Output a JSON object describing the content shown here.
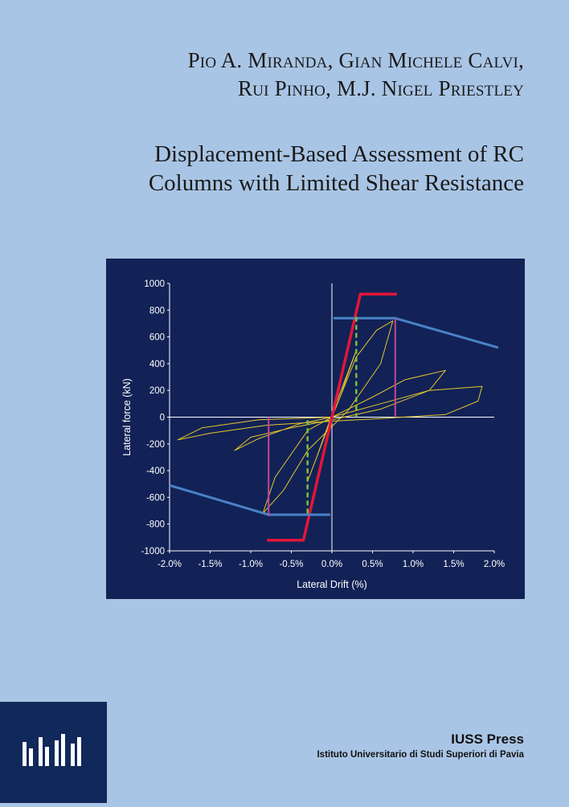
{
  "authors": {
    "line1": "Pio A. Miranda, Gian Michele Calvi,",
    "line2": "Rui Pinho, M.J. Nigel Priestley"
  },
  "title": {
    "line1": "Displacement-Based Assessment of RC",
    "line2": "Columns with Limited Shear Resistance"
  },
  "publisher": {
    "name": "IUSS Press",
    "full_name": "Istituto Universitario di Studi Superiori di Pavia"
  },
  "logo": {
    "icon": "iuss-logo-icon"
  },
  "colors": {
    "background": "#a9c5e5",
    "figure_background": "#122256",
    "hysteresis": "#e6c72e",
    "bilinear_red": "#e3163a",
    "envelope_blue": "#4a82c8",
    "drop_magenta": "#c2479a",
    "dashed_green": "#7cc23a"
  },
  "chart_data": {
    "type": "line",
    "title": "",
    "xlabel": "Lateral Drift (%)",
    "ylabel": "Lateral force (kN)",
    "xlim": [
      -2.0,
      2.0
    ],
    "ylim": [
      -1000,
      1000
    ],
    "x_ticks": [
      -2.0,
      -1.5,
      -1.0,
      -0.5,
      0.0,
      0.5,
      1.0,
      1.5,
      2.0
    ],
    "x_tick_labels": [
      "-2.0%",
      "-1.5%",
      "-1.0%",
      "-0.5%",
      "0.0%",
      "0.5%",
      "1.0%",
      "1.5%",
      "2.0%"
    ],
    "y_ticks": [
      -1000,
      -800,
      -600,
      -400,
      -200,
      0,
      200,
      400,
      600,
      800,
      1000
    ],
    "y_tick_labels": [
      "-1000",
      "-800",
      "-600",
      "-400",
      "-200",
      "0",
      "200",
      "400",
      "600",
      "800",
      "1000"
    ],
    "grid": false,
    "legend": "none",
    "series": [
      {
        "style": "red-bilinear",
        "x": [
          -0.8,
          -0.35,
          0.35,
          0.8
        ],
        "y": [
          -920,
          -920,
          920,
          920
        ]
      },
      {
        "style": "blue-envelope",
        "x": [
          -2.0,
          -0.78,
          -0.02
        ],
        "y": [
          -510,
          -730,
          -730
        ],
        "x2": [
          0.02,
          0.78,
          2.05
        ],
        "y2": [
          740,
          740,
          520
        ]
      },
      {
        "style": "magenta-drop",
        "x": [
          -0.78,
          -0.78
        ],
        "y": [
          -740,
          0
        ],
        "x2": [
          0.78,
          0.78
        ],
        "y2": [
          740,
          0
        ]
      },
      {
        "style": "green-dashed",
        "x": [
          -0.3,
          -0.3
        ],
        "y": [
          -720,
          0
        ],
        "x2": [
          0.3,
          0.3
        ],
        "y2": [
          750,
          0
        ]
      },
      {
        "style": "yellow-hysteresis",
        "loops": [
          [
            [
              0,
              0
            ],
            [
              0.1,
              150
            ],
            [
              0.2,
              330
            ],
            [
              0.3,
              500
            ],
            [
              0.05,
              100
            ],
            [
              -0.1,
              -150
            ],
            [
              -0.2,
              -320
            ],
            [
              -0.3,
              -480
            ],
            [
              -0.05,
              -80
            ],
            [
              0,
              0
            ]
          ],
          [
            [
              0,
              0
            ],
            [
              0.3,
              450
            ],
            [
              0.55,
              650
            ],
            [
              0.75,
              720
            ],
            [
              0.6,
              400
            ],
            [
              0.2,
              50
            ],
            [
              -0.3,
              -250
            ],
            [
              -0.6,
              -550
            ],
            [
              -0.85,
              -720
            ],
            [
              -0.7,
              -450
            ],
            [
              -0.3,
              -100
            ],
            [
              0,
              0
            ]
          ],
          [
            [
              0,
              0
            ],
            [
              0.5,
              150
            ],
            [
              0.9,
              280
            ],
            [
              1.4,
              350
            ],
            [
              1.2,
              200
            ],
            [
              0.6,
              60
            ],
            [
              0,
              -20
            ],
            [
              -0.5,
              -80
            ],
            [
              -1.0,
              -150
            ],
            [
              -1.2,
              -250
            ],
            [
              -0.9,
              -160
            ],
            [
              -0.4,
              -50
            ],
            [
              0,
              0
            ]
          ],
          [
            [
              0,
              0
            ],
            [
              0.6,
              100
            ],
            [
              1.2,
              200
            ],
            [
              1.85,
              230
            ],
            [
              1.8,
              120
            ],
            [
              1.4,
              20
            ],
            [
              0.6,
              -10
            ],
            [
              0,
              -30
            ],
            [
              -0.8,
              -60
            ],
            [
              -1.5,
              -120
            ],
            [
              -1.9,
              -170
            ],
            [
              -1.6,
              -80
            ],
            [
              -0.9,
              -20
            ],
            [
              0,
              0
            ]
          ]
        ]
      }
    ]
  }
}
